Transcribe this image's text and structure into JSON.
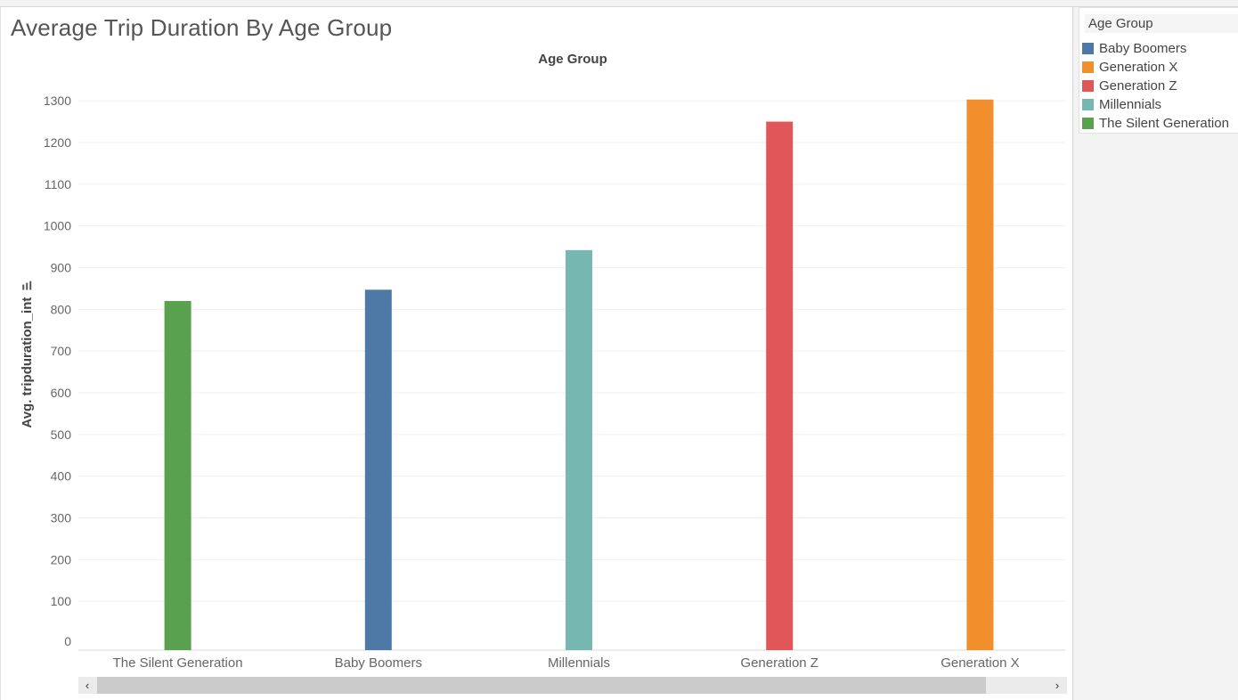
{
  "title": "Average Trip Duration By Age Group",
  "legend": {
    "title": "Age Group",
    "items": [
      {
        "label": "Baby Boomers",
        "color": "#4e79a7"
      },
      {
        "label": "Generation X",
        "color": "#f28e2b"
      },
      {
        "label": "Generation Z",
        "color": "#e15759"
      },
      {
        "label": "Millennials",
        "color": "#76b7b2"
      },
      {
        "label": "The Silent Generation",
        "color": "#59a14f"
      }
    ]
  },
  "scrollbar": {
    "left_icon": "chevron-left-icon",
    "right_icon": "chevron-right-icon",
    "left_glyph": "‹",
    "right_glyph": "›"
  },
  "chart_data": {
    "type": "bar",
    "title": "Average Trip Duration By Age Group",
    "column_header": "Age Group",
    "xlabel": "",
    "ylabel": "Avg. tripduration_int",
    "sort_icon": "sort-ascending-icon",
    "categories": [
      "The Silent Generation",
      "Baby Boomers",
      "Millennials",
      "Generation Z",
      "Generation X"
    ],
    "values": [
      820,
      847,
      942,
      1250,
      1303
    ],
    "colors": [
      "#59a14f",
      "#4e79a7",
      "#76b7b2",
      "#e15759",
      "#f28e2b"
    ],
    "ylim": [
      0,
      1300
    ],
    "yticks": [
      0,
      100,
      200,
      300,
      400,
      500,
      600,
      700,
      800,
      900,
      1000,
      1100,
      1200,
      1300
    ],
    "grid": true,
    "legend_position": "right"
  }
}
